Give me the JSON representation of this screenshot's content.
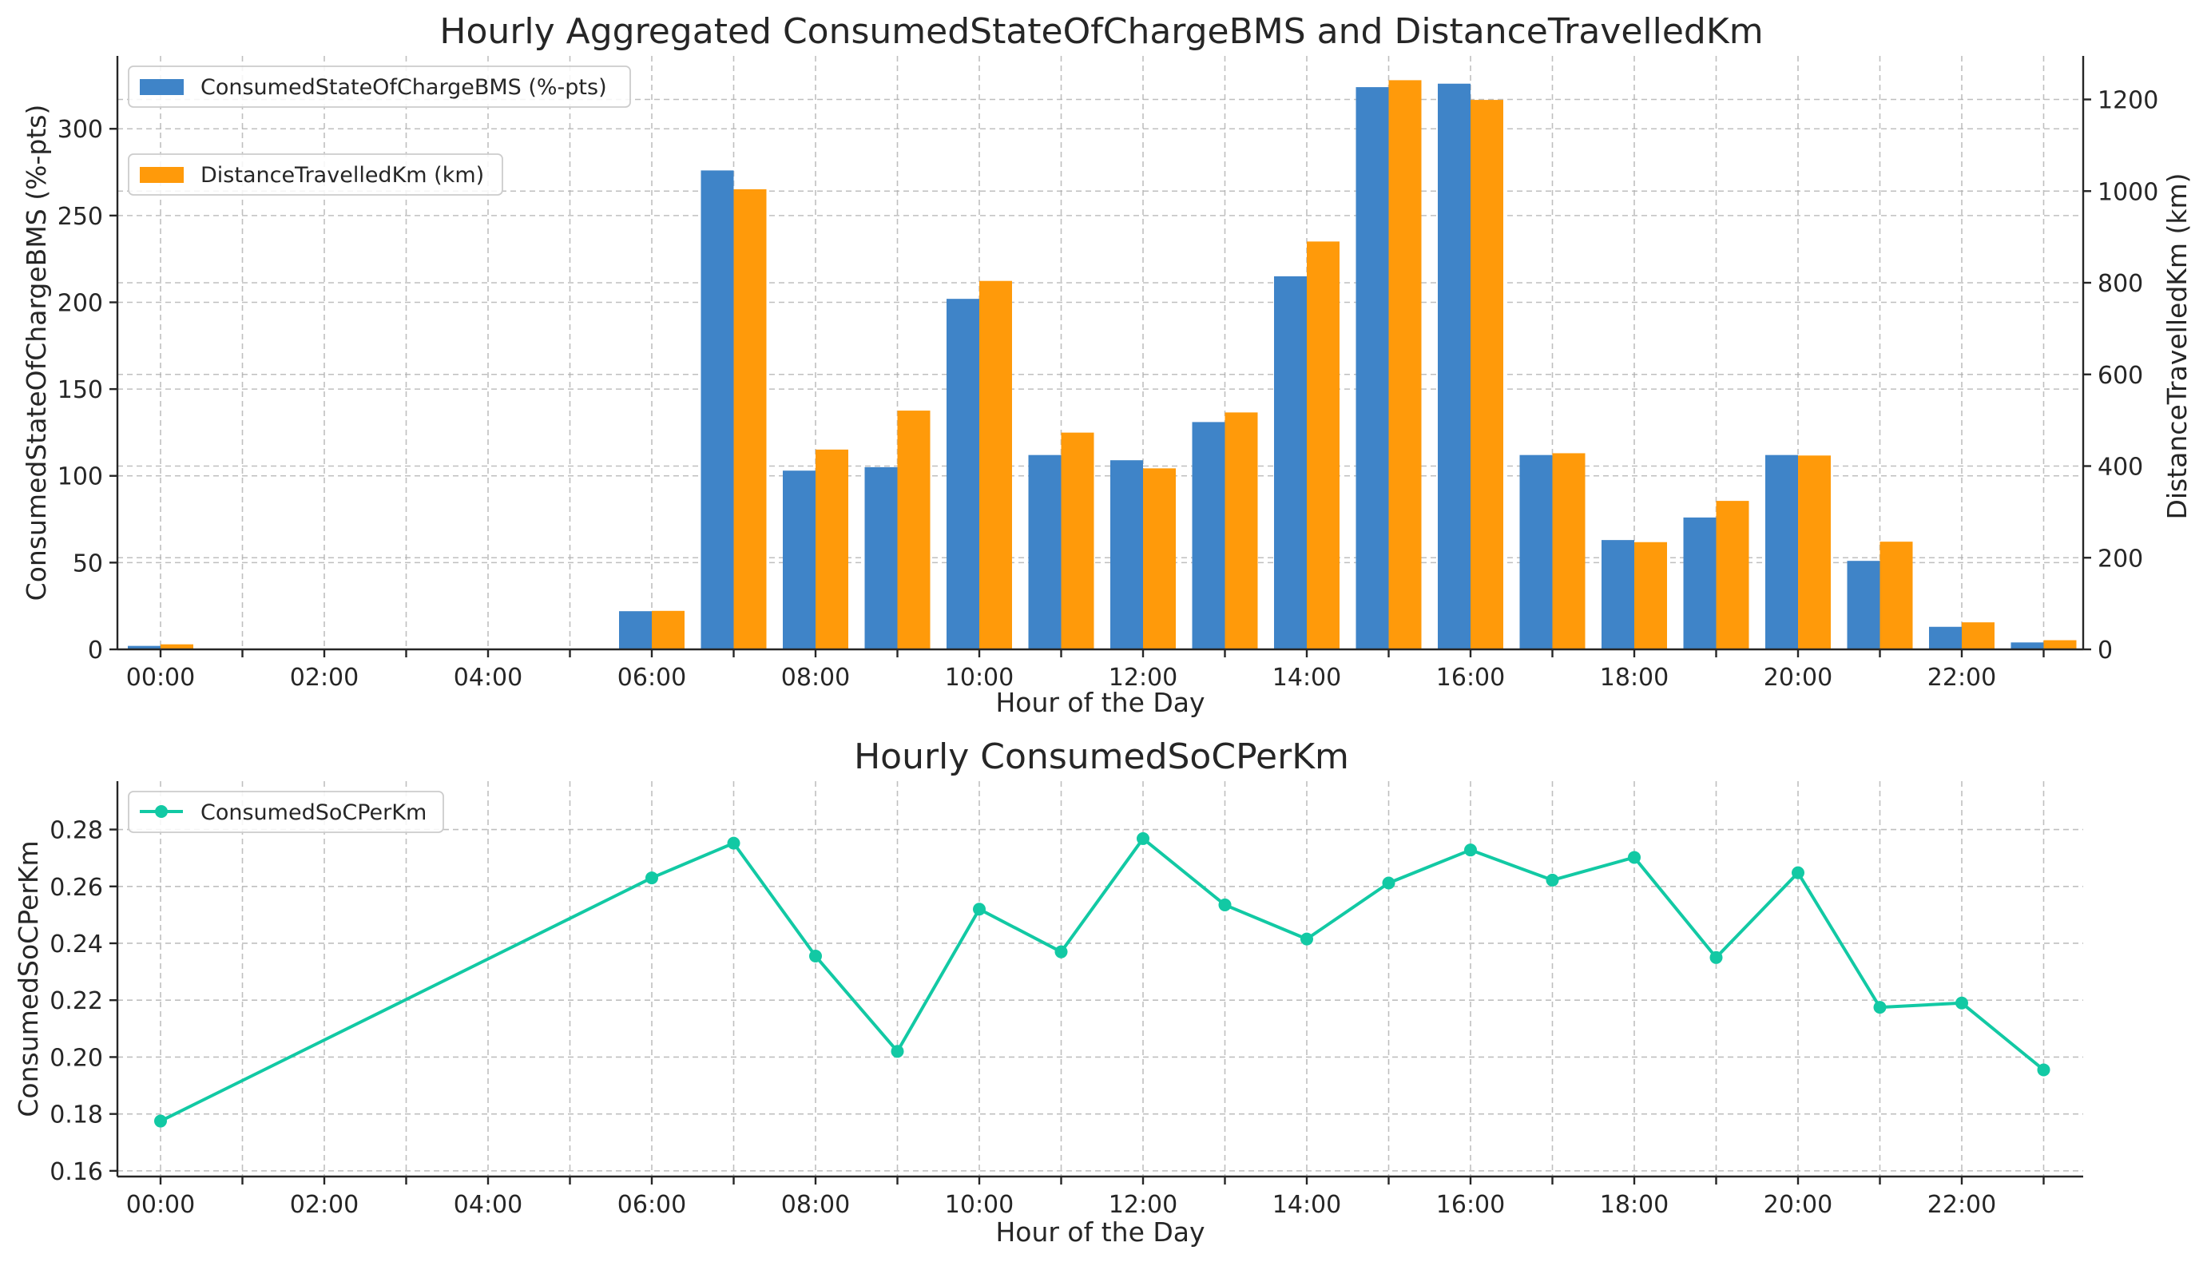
{
  "chart_data": [
    {
      "type": "bar",
      "title": "Hourly Aggregated ConsumedStateOfChargeBMS and DistanceTravelledKm",
      "xlabel": "Hour of the Day",
      "ylabel": "ConsumedStateOfChargeBMS (%-pts)",
      "y2label": "DistanceTravelledKm (km)",
      "x_tick_labels": [
        "00:00",
        "02:00",
        "04:00",
        "06:00",
        "08:00",
        "10:00",
        "12:00",
        "14:00",
        "16:00",
        "18:00",
        "20:00",
        "22:00"
      ],
      "hours": [
        0,
        1,
        2,
        3,
        4,
        5,
        6,
        7,
        8,
        9,
        10,
        11,
        12,
        13,
        14,
        15,
        16,
        17,
        18,
        19,
        20,
        21,
        22,
        23
      ],
      "ylim": [
        0,
        342
      ],
      "y_ticks": [
        0,
        50,
        100,
        150,
        200,
        250,
        300
      ],
      "y2lim": [
        0,
        1295
      ],
      "y2_ticks": [
        0,
        200,
        400,
        600,
        800,
        1000,
        1200
      ],
      "grid": true,
      "series": [
        {
          "name": "ConsumedStateOfChargeBMS (%-pts)",
          "axis": "left",
          "color": "#3f84c8",
          "values": [
            2,
            0,
            0,
            0,
            0,
            0,
            22,
            276,
            103,
            105,
            202,
            112,
            109,
            131,
            215,
            324,
            326,
            112,
            63,
            76,
            112,
            51,
            13,
            4
          ]
        },
        {
          "name": "DistanceTravelledKm (km)",
          "axis": "right",
          "color": "#ff9a0a",
          "values": [
            11,
            0,
            0,
            0,
            0,
            0,
            84,
            1004,
            436,
            521,
            804,
            473,
            395,
            517,
            890,
            1242,
            1199,
            428,
            234,
            324,
            423,
            235,
            59,
            20
          ]
        }
      ],
      "legend": "top-left (separate boxes)"
    },
    {
      "type": "line",
      "title": "Hourly ConsumedSoCPerKm",
      "xlabel": "Hour of the Day",
      "ylabel": "ConsumedSoCPerKm",
      "x_tick_labels": [
        "00:00",
        "02:00",
        "04:00",
        "06:00",
        "08:00",
        "10:00",
        "12:00",
        "14:00",
        "16:00",
        "18:00",
        "20:00",
        "22:00"
      ],
      "ylim": [
        0.158,
        0.297
      ],
      "y_ticks": [
        0.16,
        0.18,
        0.2,
        0.22,
        0.24,
        0.26,
        0.28
      ],
      "y_tick_labels": [
        "0.16",
        "0.18",
        "0.20",
        "0.22",
        "0.24",
        "0.26",
        "0.28"
      ],
      "grid": true,
      "series": [
        {
          "name": "ConsumedSoCPerKm",
          "color": "#12c9a4",
          "x": [
            0,
            6,
            7,
            8,
            9,
            10,
            11,
            12,
            13,
            14,
            15,
            16,
            17,
            18,
            19,
            20,
            21,
            22,
            23
          ],
          "values": [
            0.1775,
            0.263,
            0.2752,
            0.2355,
            0.202,
            0.252,
            0.237,
            0.2768,
            0.2535,
            0.2415,
            0.2612,
            0.2728,
            0.2622,
            0.2702,
            0.235,
            0.2648,
            0.2175,
            0.219,
            0.1955
          ]
        }
      ],
      "legend": "top-left"
    }
  ]
}
